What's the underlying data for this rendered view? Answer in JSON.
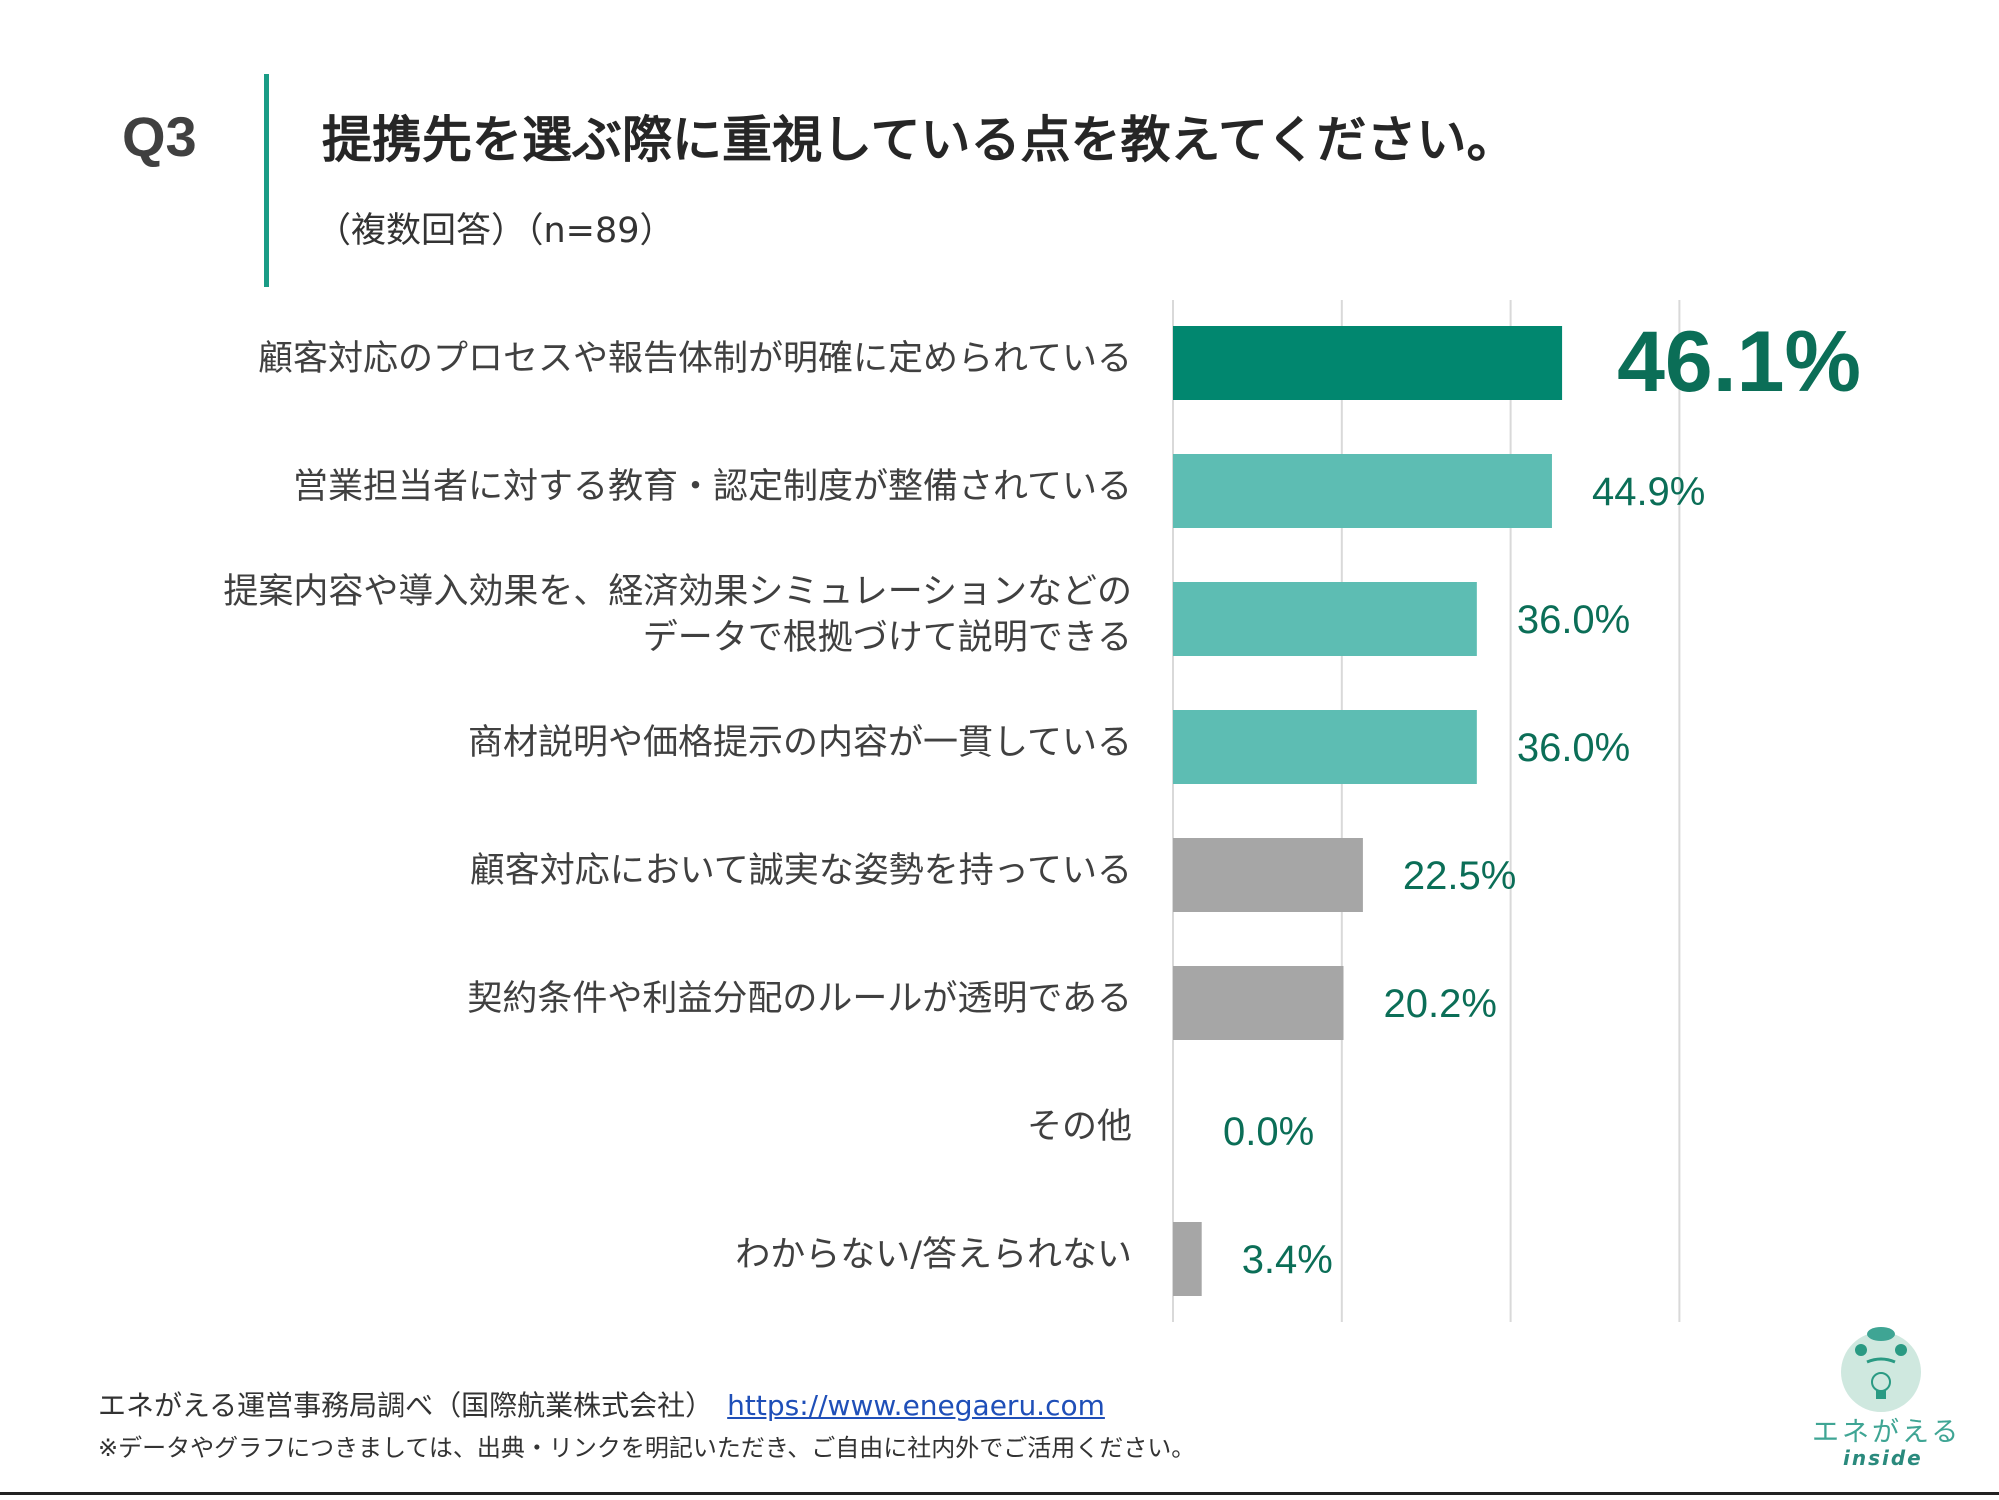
{
  "header": {
    "question_no": "Q3",
    "title": "提携先を選ぶ際に重視している点を教えてください。",
    "subtitle": "（複数回答）（n=89）"
  },
  "chart_data": {
    "type": "bar",
    "orientation": "horizontal",
    "categories": [
      [
        "顧客対応のプロセスや報告体制が明確に定められている"
      ],
      [
        "営業担当者に対する教育・認定制度が整備されている"
      ],
      [
        "提案内容や導入効果を、経済効果シミュレーションなどの",
        "データで根拠づけて説明できる"
      ],
      [
        "商材説明や価格提示の内容が一貫している"
      ],
      [
        "顧客対応において誠実な姿勢を持っている"
      ],
      [
        "契約条件や利益分配のルールが透明である"
      ],
      [
        "その他"
      ],
      [
        "わからない/答えられない"
      ]
    ],
    "values": [
      46.1,
      44.9,
      36.0,
      36.0,
      22.5,
      20.2,
      0.0,
      3.4
    ],
    "value_labels": [
      "46.1%",
      "44.9%",
      "36.0%",
      "36.0%",
      "22.5%",
      "20.2%",
      "0.0%",
      "3.4%"
    ],
    "bar_colors": [
      "#01876f",
      "#5dbdb3",
      "#5dbdb3",
      "#5dbdb3",
      "#a6a6a6",
      "#a6a6a6",
      "#a6a6a6",
      "#a6a6a6"
    ],
    "label_color": "#0b6e57",
    "xlim": [
      0,
      60
    ],
    "gridlines": [
      0,
      20,
      40,
      60
    ],
    "grid": true
  },
  "footer": {
    "source": "エネがえる運営事務局調べ（国際航業株式会社）",
    "url": "https://www.enegaeru.com",
    "note": "※データやグラフにつきましては、出典・リンクを明記いただき、ご自由に社内外でご活用ください。"
  },
  "logo": {
    "text": "エネがえる",
    "sub": "inside"
  }
}
